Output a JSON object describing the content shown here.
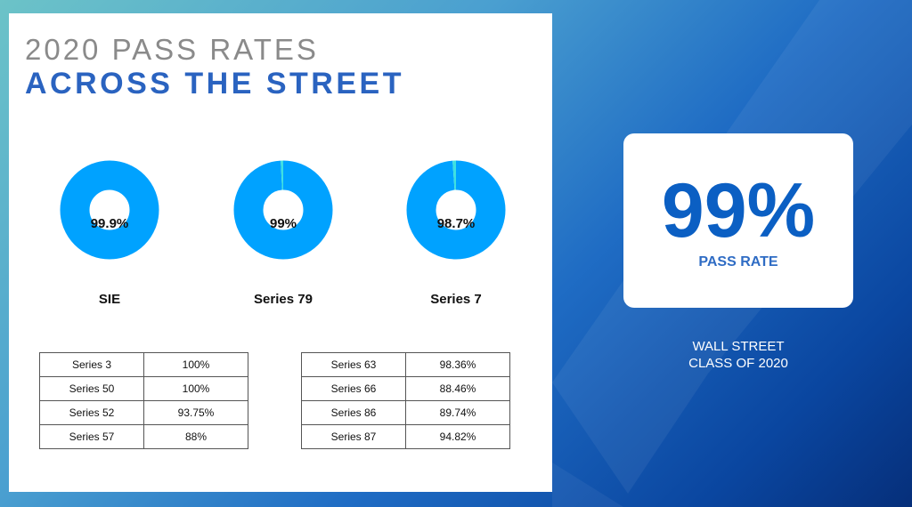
{
  "title_line1": "2020 PASS RATES",
  "title_line2": "ACROSS THE STREET",
  "colors": {
    "donut_fill": "#00a2ff",
    "donut_rest": "#3ee0e0",
    "title_blue": "#2a63c0"
  },
  "chart_data": {
    "type": "pie",
    "variant": "donut",
    "charts": [
      {
        "label": "SIE",
        "value_label": "99.9%",
        "value": 99.9
      },
      {
        "label": "Series 79",
        "value_label": "99%",
        "value": 99
      },
      {
        "label": "Series 7",
        "value_label": "98.7%",
        "value": 98.7
      }
    ]
  },
  "table_left": [
    [
      "Series 3",
      "100%"
    ],
    [
      "Series 50",
      "100%"
    ],
    [
      "Series 52",
      "93.75%"
    ],
    [
      "Series 57",
      "88%"
    ]
  ],
  "table_right": [
    [
      "Series 63",
      "98.36%"
    ],
    [
      "Series 66",
      "88.46%"
    ],
    [
      "Series 86",
      "89.74%"
    ],
    [
      "Series 87",
      "94.82%"
    ]
  ],
  "card": {
    "value": "99%",
    "label": "PASS RATE"
  },
  "footer": {
    "line1": "WALL STREET",
    "line2": "CLASS OF 2020"
  }
}
